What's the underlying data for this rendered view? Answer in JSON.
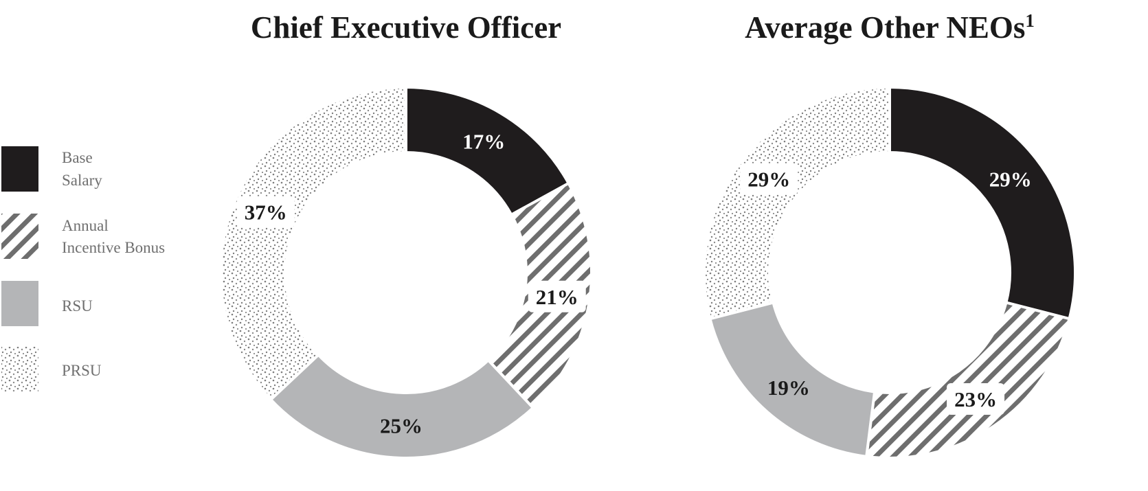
{
  "legend": [
    {
      "lines": [
        "Base",
        "Salary"
      ],
      "pattern": "solid-black"
    },
    {
      "lines": [
        "Annual",
        "Incentive Bonus"
      ],
      "pattern": "diagonal-stripes"
    },
    {
      "lines": [
        "RSU"
      ],
      "pattern": "solid-gray"
    },
    {
      "lines": [
        "PRSU"
      ],
      "pattern": "dots"
    }
  ],
  "colors": {
    "base_salary": "#1f1c1d",
    "annual_incentive_bonus": "#6e6e6e",
    "rsu": "#b4b5b7",
    "prsu": "#7d7d7d",
    "title": "#1a1a1a",
    "legend_text": "#6f6f6f"
  },
  "chart_data": [
    {
      "type": "pie",
      "style": "donut",
      "title": "Chief Executive Officer",
      "title_superscript": "",
      "categories": [
        "Base Salary",
        "Annual Incentive Bonus",
        "RSU",
        "PRSU"
      ],
      "values": [
        17,
        21,
        25,
        37
      ],
      "labels": [
        "17%",
        "21%",
        "25%",
        "37%"
      ]
    },
    {
      "type": "pie",
      "style": "donut",
      "title": "Average Other NEOs",
      "title_superscript": "1",
      "categories": [
        "Base Salary",
        "Annual Incentive Bonus",
        "RSU",
        "PRSU"
      ],
      "values": [
        29,
        23,
        19,
        29
      ],
      "labels": [
        "29%",
        "23%",
        "19%",
        "29%"
      ]
    }
  ]
}
